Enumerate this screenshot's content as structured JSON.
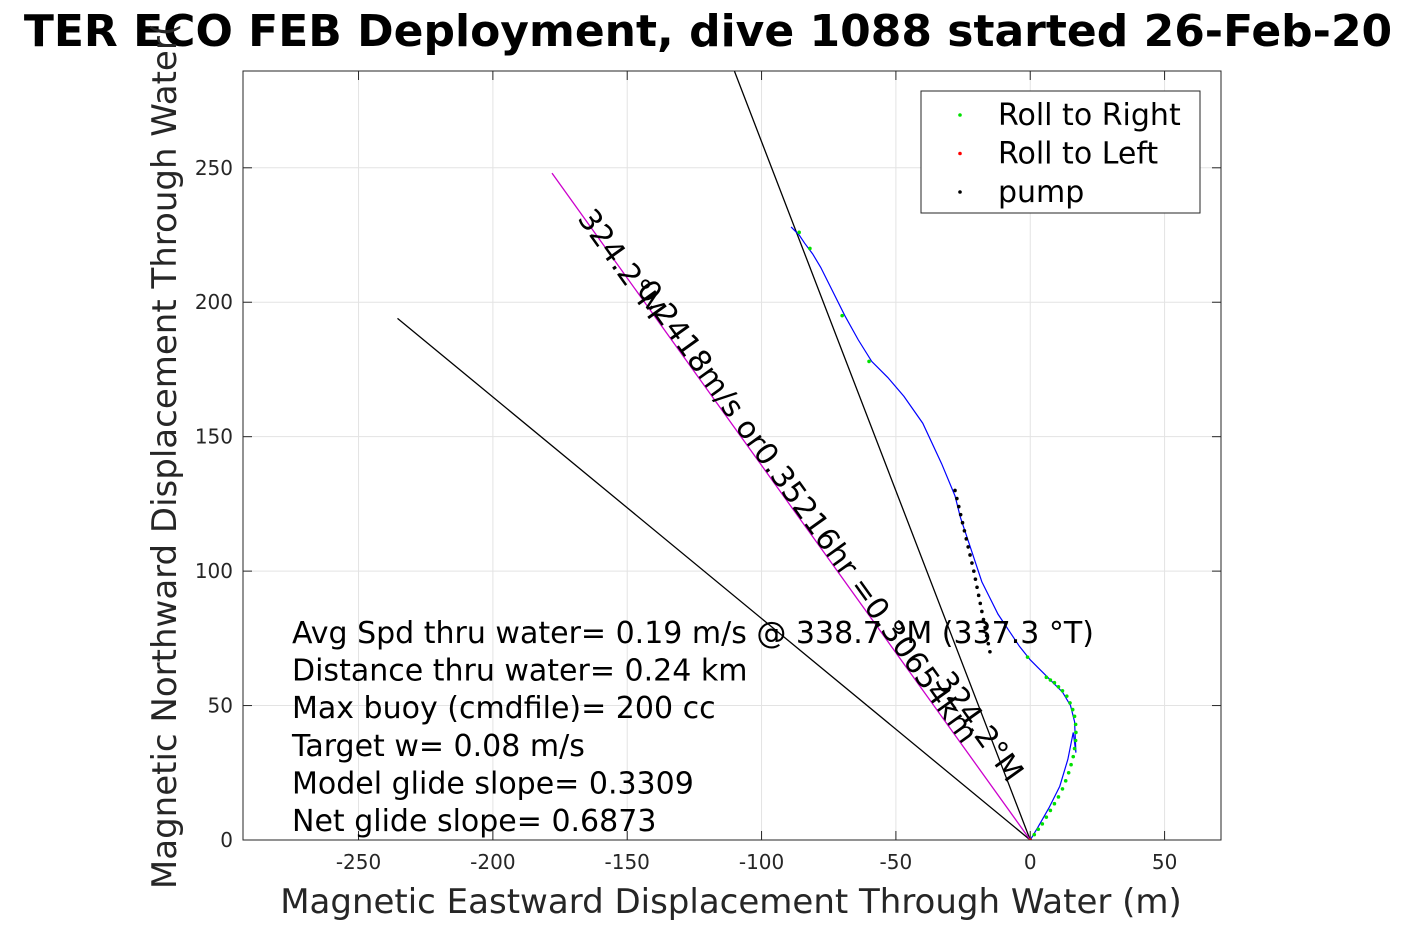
{
  "chart_data": {
    "type": "line",
    "title": "TER ECO FEB Deployment, dive 1088 started 26-Feb-20",
    "xlabel": "Magnetic Eastward Displacement Through Water (m)",
    "ylabel": "Magnetic Northward Displacement Through Water(",
    "xlim": [
      -293,
      71
    ],
    "ylim": [
      0,
      286
    ],
    "xticks": [
      -250,
      -200,
      -150,
      -100,
      -50,
      0,
      50
    ],
    "yticks": [
      0,
      50,
      100,
      150,
      200,
      250
    ],
    "grid": true,
    "legend": {
      "placement": "top-right",
      "entries": [
        {
          "label": "Roll to Right",
          "color": "#00e000"
        },
        {
          "label": "Roll to Left",
          "color": "#ff0000"
        },
        {
          "label": "pump",
          "color": "#000000"
        }
      ]
    },
    "track": {
      "color": "#0000ff",
      "x": [
        0,
        3,
        7,
        11,
        14,
        16,
        17,
        16.5,
        15,
        12,
        9,
        6,
        3,
        0,
        -4,
        -8,
        -12,
        -15,
        -18,
        -20,
        -22,
        -24,
        -26,
        -28,
        -33,
        -40,
        -47,
        -53,
        -59,
        -64,
        -69,
        -74,
        -78,
        -81,
        -84,
        -86,
        -88,
        -89
      ],
      "y": [
        0,
        5,
        12,
        20,
        30,
        40,
        32.5,
        44,
        50,
        55,
        58,
        61,
        64,
        67,
        72,
        78,
        84,
        90,
        96,
        102,
        108,
        114,
        120,
        128,
        140,
        155,
        165,
        172,
        178,
        186,
        195,
        205,
        213,
        218,
        222,
        225,
        227,
        228
      ]
    },
    "series": [
      {
        "name": "Roll to Right",
        "marker": "dot",
        "color": "#00e000",
        "x": [
          0,
          1.5,
          3,
          4.5,
          6,
          7.5,
          9,
          10.5,
          12,
          13.2,
          14.3,
          15.2,
          16,
          16.5,
          16.9,
          17,
          16.9,
          16.5,
          15.8,
          14.8,
          13.6,
          12,
          10.5,
          9,
          7.5,
          6,
          -1,
          -60,
          -70,
          -82,
          -86
        ],
        "y": [
          0,
          2,
          4,
          6,
          8.5,
          11,
          13.5,
          16,
          19,
          22,
          25,
          28,
          31,
          34,
          37,
          40,
          43,
          46,
          48.5,
          51,
          53.5,
          55.5,
          57,
          58.5,
          59.5,
          60.5,
          68,
          178,
          195,
          220,
          226
        ]
      },
      {
        "name": "Roll to Left",
        "marker": "dot",
        "color": "#ff0000",
        "x": [
          0
        ],
        "y": [
          0
        ]
      },
      {
        "name": "pump",
        "marker": "dot",
        "color": "#000000",
        "x": [
          -28,
          -27.3,
          -26.6,
          -25.9,
          -25.2,
          -24.5,
          -23.8,
          -23.1,
          -22.4,
          -21.7,
          -21,
          -20.4,
          -19.8,
          -19.2,
          -18.6,
          -18,
          -17.4,
          -16.8,
          -16.2,
          -15.6,
          -15
        ],
        "y": [
          130,
          127,
          124,
          121,
          118,
          115,
          112,
          109,
          106,
          103,
          100,
          97,
          94,
          91,
          88,
          85,
          82,
          79,
          76,
          73,
          70
        ]
      }
    ],
    "reference_lines": [
      {
        "color": "#000000",
        "x": [
          0,
          -235.5
        ],
        "y": [
          0,
          194
        ]
      },
      {
        "color": "#000000",
        "x": [
          0,
          -110.5
        ],
        "y": [
          0,
          287
        ]
      },
      {
        "color": "#cc00cc",
        "x": [
          0,
          -178
        ],
        "y": [
          0,
          248
        ]
      }
    ],
    "rotated_labels": [
      {
        "text": "324.2°M",
        "x": -155,
        "y": 212
      },
      {
        "text": "0.3065 4km",
        "x": -112,
        "y": 148
      },
      {
        "text": "0.2418m/s or0.3521 6hr =",
        "x": -104,
        "y": 148
      },
      {
        "text": "324.2°M",
        "x": -30,
        "y": 38
      },
      {
        "text": "0.2418m/s or0.35216hr =0.30654km",
        "x": -45,
        "y": 78
      }
    ],
    "info_lines": [
      "Avg Spd thru water=  0.19 m/s @ 338.7 °M (337.3 °T)",
      "Distance thru water=  0.24 km",
      "Max buoy (cmdfile)= 200 cc",
      "Target w= 0.08 m/s",
      "Model glide slope= 0.3309",
      "Net glide slope= 0.6873"
    ]
  }
}
